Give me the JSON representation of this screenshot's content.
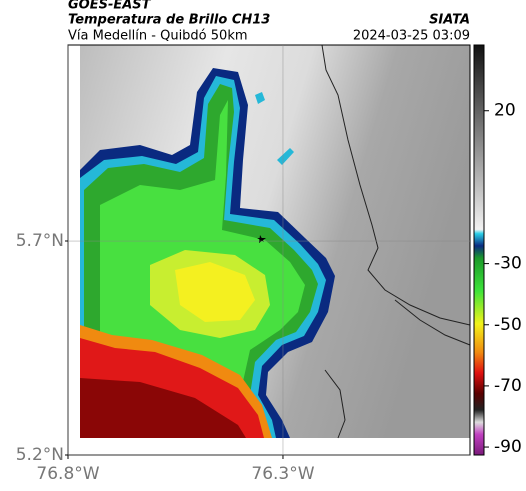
{
  "header": {
    "satellite": "GOES-EAST",
    "product": "Temperatura de Brillo CH13",
    "route": "Vía Medellín - Quibdó 50km",
    "source": "SIATA",
    "timestamp": "2024-03-25 03:09"
  },
  "map": {
    "xlim": [
      -76.8,
      -75.865
    ],
    "ylim": [
      5.2,
      6.158
    ],
    "xticks": [
      {
        "value": -76.8,
        "label": "76.8°W"
      },
      {
        "value": -76.3,
        "label": "76.3°W"
      }
    ],
    "yticks": [
      {
        "value": 5.2,
        "label": "5.2°N"
      },
      {
        "value": 5.7,
        "label": "5.7°N"
      }
    ],
    "grid": true
  },
  "colorbar": {
    "lim": [
      -92.6,
      41.5
    ],
    "ticks": [
      20,
      -30,
      -50,
      -70,
      -90
    ]
  }
}
